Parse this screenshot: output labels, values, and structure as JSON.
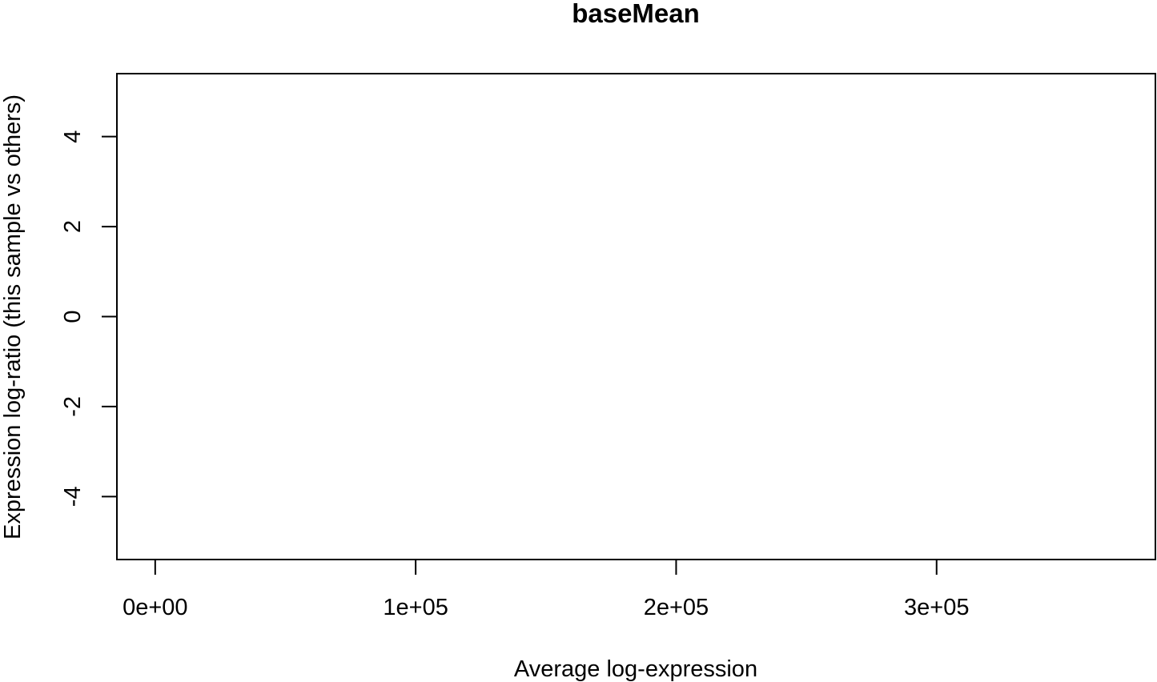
{
  "chart_data": {
    "type": "scatter",
    "title": "baseMean",
    "xlabel": "Average log-expression",
    "ylabel": "Expression log-ratio (this sample vs others)",
    "xlim": [
      -14700,
      384000
    ],
    "ylim": [
      -5.4,
      5.4
    ],
    "x_ticks": [
      0,
      100000,
      200000,
      300000
    ],
    "x_tick_labels": [
      "0e+00",
      "1e+05",
      "2e+05",
      "3e+05"
    ],
    "y_ticks": [
      -4,
      -2,
      0,
      2,
      4
    ],
    "y_tick_labels": [
      "-4",
      "-2",
      "0",
      "2",
      "4"
    ],
    "grid": false,
    "points": []
  }
}
